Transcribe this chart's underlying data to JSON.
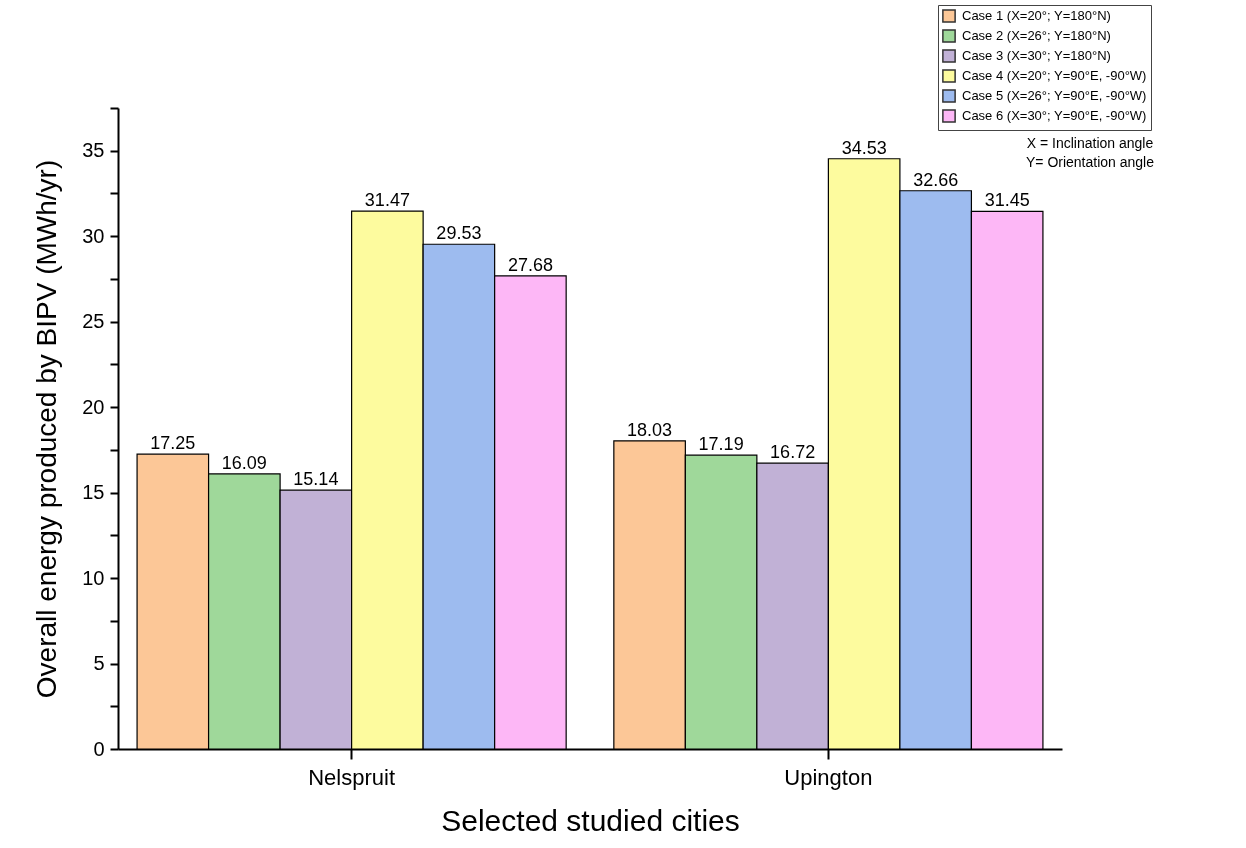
{
  "chart_data": {
    "type": "bar",
    "xlabel": "Selected studied cities",
    "ylabel": "Overall energy produced by BIPV (MWh/yr)",
    "categories": [
      "Nelspruit",
      "Upington"
    ],
    "series": [
      {
        "name": "Case 1 (X=20°; Y=180°N)",
        "color": "#fcc797",
        "values": [
          17.25,
          18.03
        ]
      },
      {
        "name": "Case 2 (X=26°; Y=180°N)",
        "color": "#9fd89a",
        "values": [
          16.09,
          17.19
        ]
      },
      {
        "name": "Case 3 (X=30°; Y=180°N)",
        "color": "#c1b1d6",
        "values": [
          15.14,
          16.72
        ]
      },
      {
        "name": "Case 4 (X=20°; Y=90°E, -90°W)",
        "color": "#fdfb9e",
        "values": [
          31.47,
          34.53
        ]
      },
      {
        "name": "Case 5 (X=26°; Y=90°E, -90°W)",
        "color": "#9dbbef",
        "values": [
          29.53,
          32.66
        ]
      },
      {
        "name": "Case 6 (X=30°; Y=90°E, -90°W)",
        "color": "#fdb7f6",
        "values": [
          27.68,
          31.45
        ]
      }
    ],
    "ylim": [
      0,
      37.5
    ],
    "yticks": [
      0,
      {
        "value": 2.5,
        "label": null
      },
      5,
      {
        "value": 7.5,
        "label": null
      },
      10,
      {
        "value": 12.5,
        "label": null
      },
      15,
      {
        "value": 17.5,
        "label": null
      },
      20,
      {
        "value": 22.5,
        "label": null
      },
      25,
      {
        "value": 27.5,
        "label": null
      },
      30,
      {
        "value": 32.5,
        "label": null
      },
      35,
      {
        "value": 37.5,
        "label": null
      }
    ],
    "data_labels": true,
    "grid": false,
    "legend": "top right",
    "annotations": [
      "X = Inclination angle",
      "Y= Orientation angle"
    ]
  }
}
